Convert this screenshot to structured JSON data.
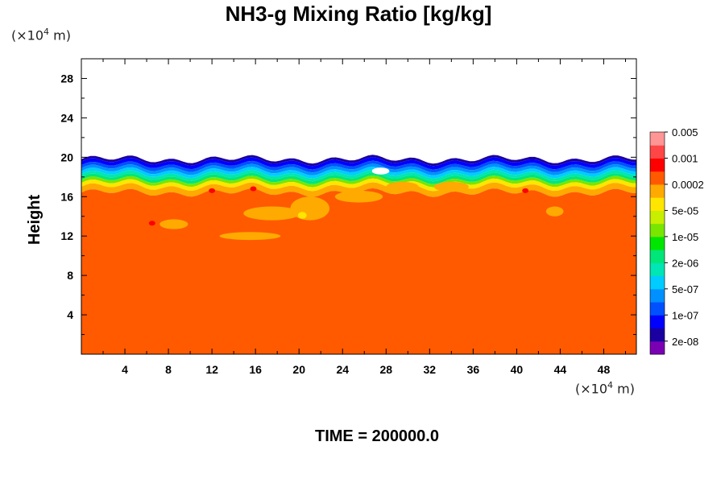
{
  "chart_data": {
    "type": "heatmap",
    "title": "NH3-g Mixing Ratio [kg/kg]",
    "ylabel": "Height",
    "xlabel": "",
    "x_unit": "(×10",
    "x_unit_exp": "4",
    "x_unit_tail": " m)",
    "y_unit": "(×10",
    "y_unit_exp": "4",
    "y_unit_tail": " m)",
    "xlim": [
      0,
      51
    ],
    "ylim": [
      0,
      30
    ],
    "x_ticks": [
      4,
      8,
      12,
      16,
      20,
      24,
      28,
      32,
      36,
      40,
      44,
      48
    ],
    "y_ticks": [
      4,
      8,
      12,
      16,
      20,
      24,
      28
    ],
    "grid": false,
    "colorbar": {
      "placement": "right",
      "colors": [
        "#7a00b4",
        "#1a00a0",
        "#0000ff",
        "#0050ff",
        "#0090ff",
        "#00ccff",
        "#00e6b4",
        "#00e678",
        "#00e600",
        "#78e600",
        "#c8ee00",
        "#ffe600",
        "#ffaa00",
        "#ff5a00",
        "#ff0000",
        "#ff4646",
        "#ff9696"
      ],
      "labels": [
        "2e-08",
        "1e-07",
        "5e-07",
        "2e-06",
        "1e-05",
        "5e-05",
        "0.0002",
        "0.001",
        "0.005"
      ]
    },
    "field_summary": {
      "dominant_value_below_16": "0.001",
      "top_of_plume_height": 19.8
    },
    "annotation": "TIME = 200000.0"
  }
}
